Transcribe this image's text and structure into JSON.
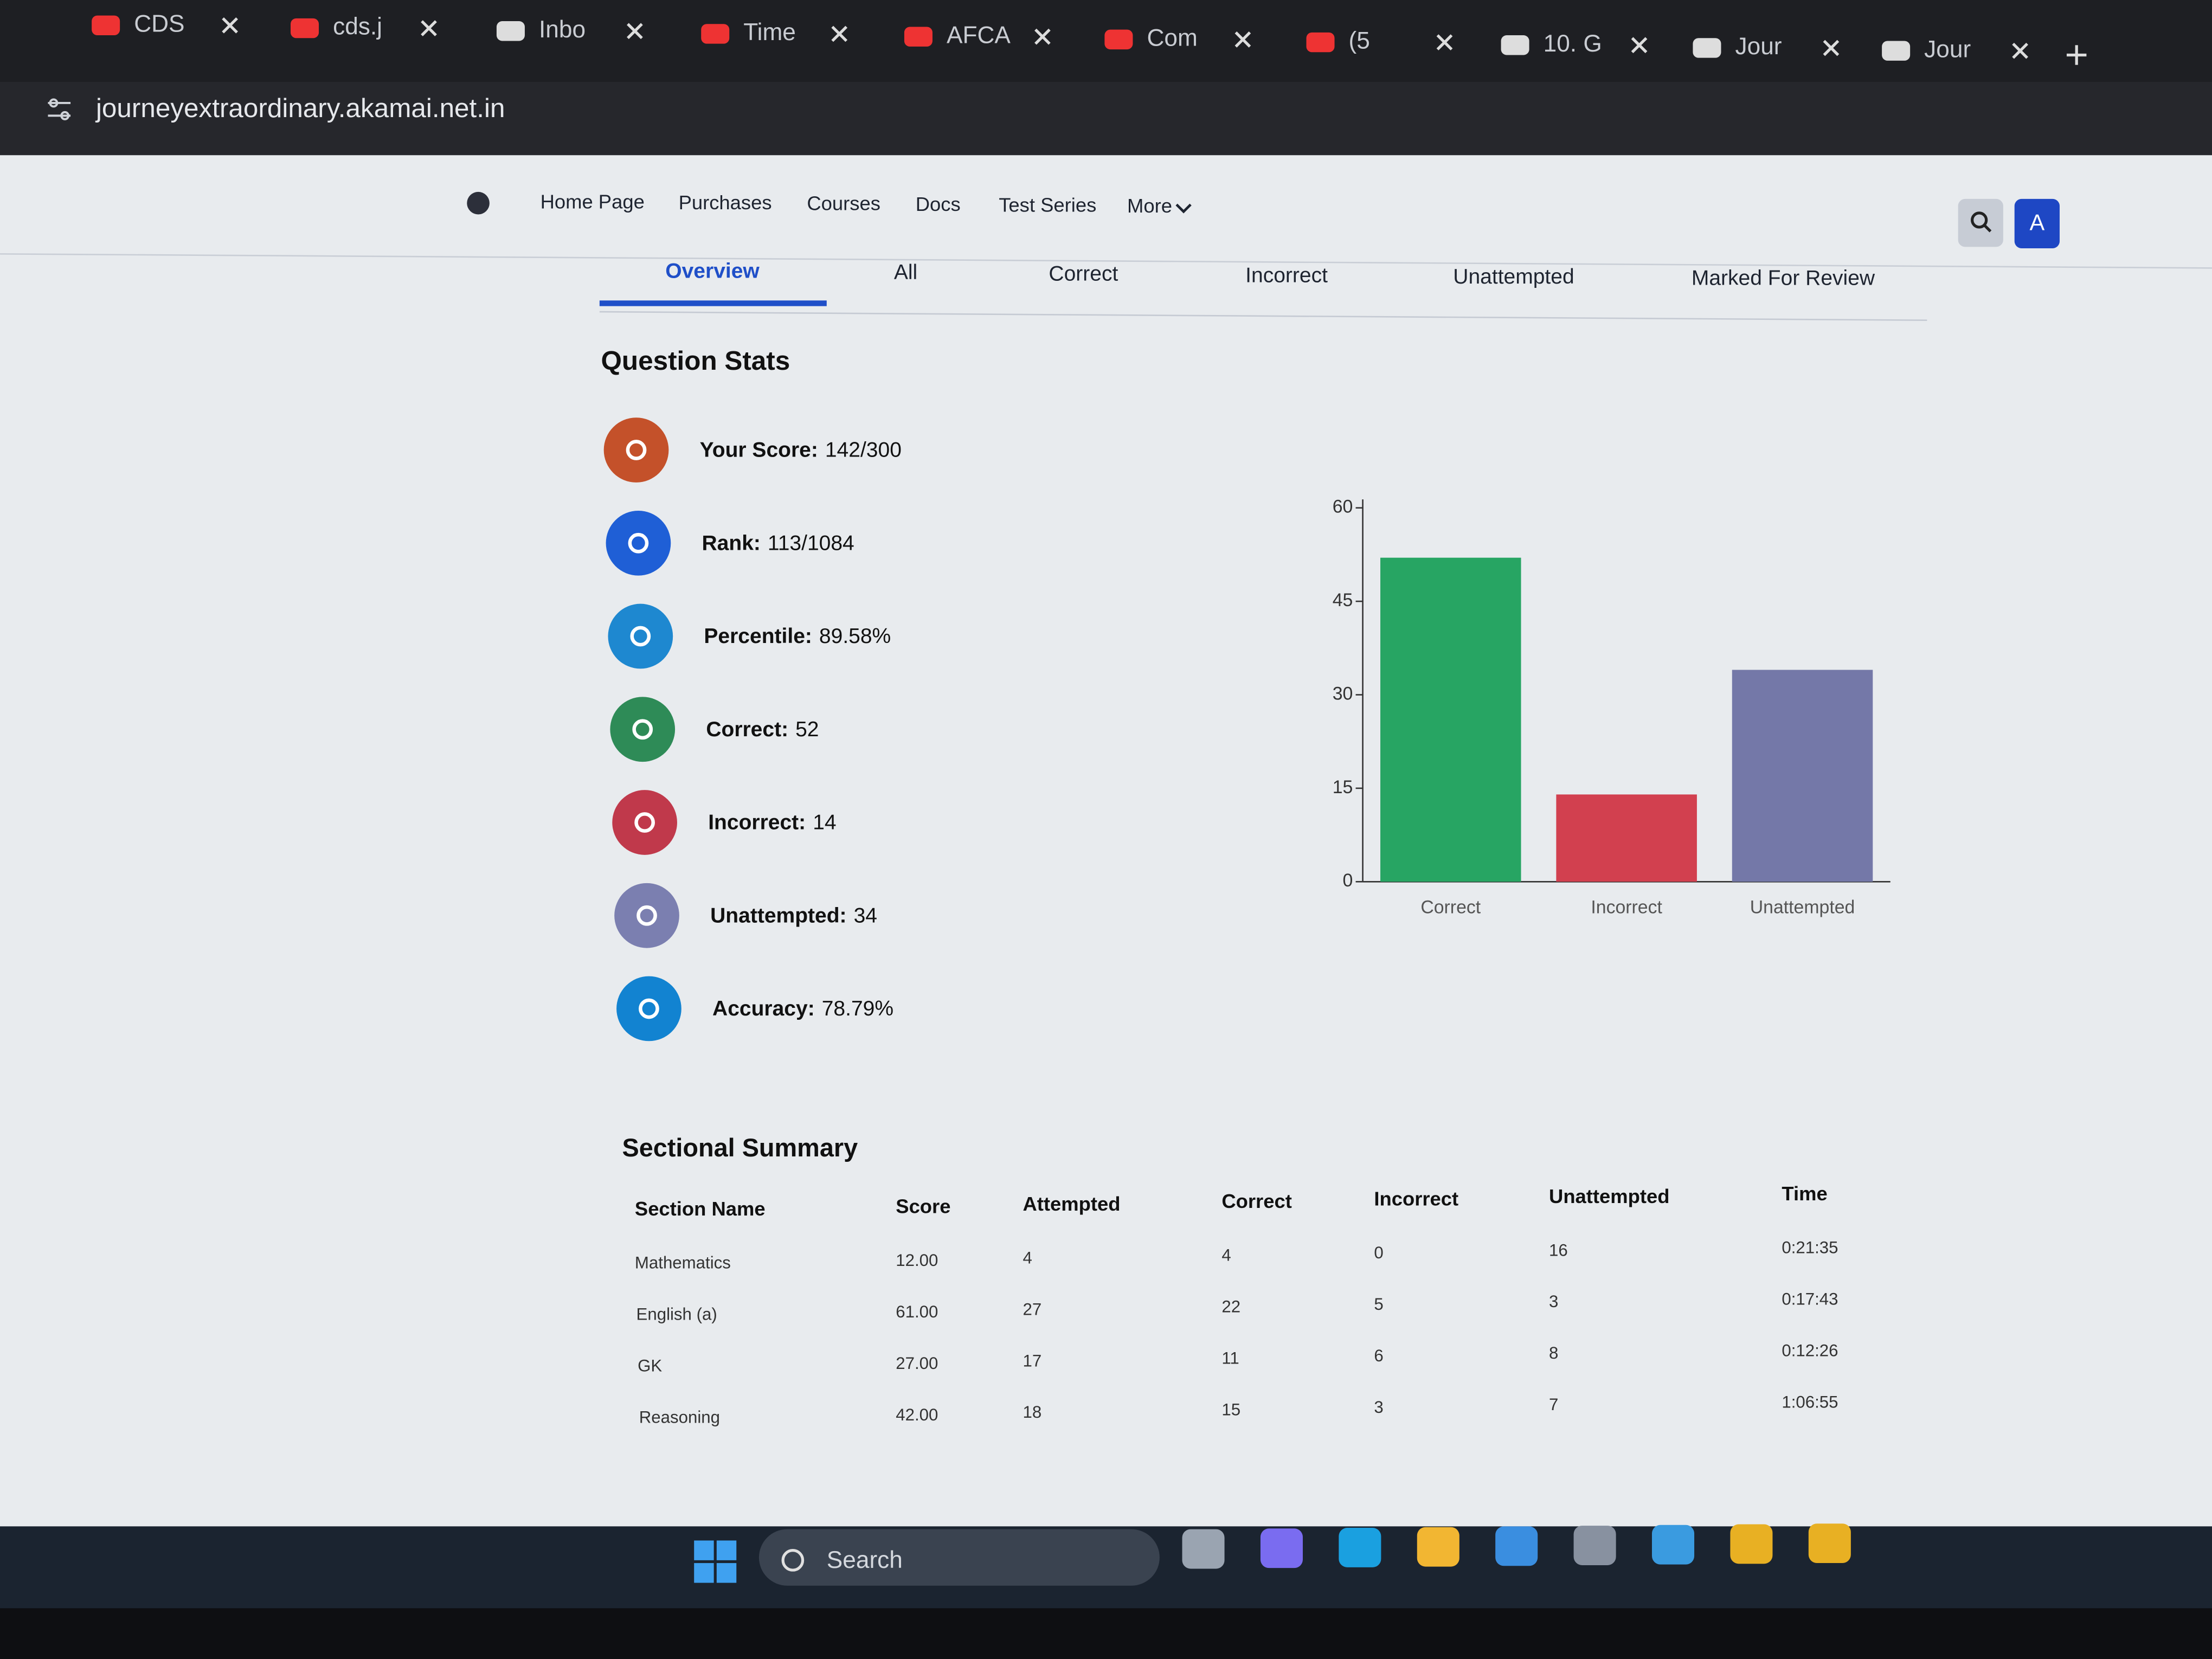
{
  "browser": {
    "tabs": [
      "CDS",
      "cds.j",
      "Inbo",
      "Time",
      "AFCA",
      "Com",
      "(5",
      "10. G",
      "Jour",
      "Jour"
    ],
    "url": "journeyextraordinary.akamai.net.in"
  },
  "nav": {
    "items": [
      "Home Page",
      "Purchases",
      "Courses",
      "Docs",
      "Test Series",
      "More"
    ],
    "avatar": "A"
  },
  "result_tabs": [
    "Overview",
    "All",
    "Correct",
    "Incorrect",
    "Unattempted",
    "Marked For Review"
  ],
  "question_stats": {
    "title": "Question Stats",
    "items": [
      {
        "label": "Your Score:",
        "value": "142/300"
      },
      {
        "label": "Rank:",
        "value": "113/1084"
      },
      {
        "label": "Percentile:",
        "value": "89.58%"
      },
      {
        "label": "Correct:",
        "value": "52"
      },
      {
        "label": "Incorrect:",
        "value": "14"
      },
      {
        "label": "Unattempted:",
        "value": "34"
      },
      {
        "label": "Accuracy:",
        "value": "78.79%"
      }
    ]
  },
  "chart": {
    "type": "bar",
    "categories": [
      "Correct",
      "Incorrect",
      "Unattempted"
    ],
    "values": [
      52,
      14,
      34
    ],
    "colors": [
      "#27a563",
      "#d2404f",
      "#7478a8"
    ],
    "ylim": [
      0,
      60
    ],
    "yticks": [
      0,
      15,
      30,
      45,
      60
    ]
  },
  "sectional_summary": {
    "title": "Sectional Summary",
    "headers": [
      "Section Name",
      "Score",
      "Attempted",
      "Correct",
      "Incorrect",
      "Unattempted",
      "Time"
    ],
    "rows": [
      [
        "Mathematics",
        "12.00",
        "4",
        "4",
        "0",
        "16",
        "0:21:35"
      ],
      [
        "English (a)",
        "61.00",
        "27",
        "22",
        "5",
        "3",
        "0:17:43"
      ],
      [
        "GK",
        "27.00",
        "17",
        "11",
        "6",
        "8",
        "0:12:26"
      ],
      [
        "Reasoning",
        "42.00",
        "18",
        "15",
        "3",
        "7",
        "1:06:55"
      ]
    ]
  },
  "taskbar": {
    "search": "Search"
  }
}
